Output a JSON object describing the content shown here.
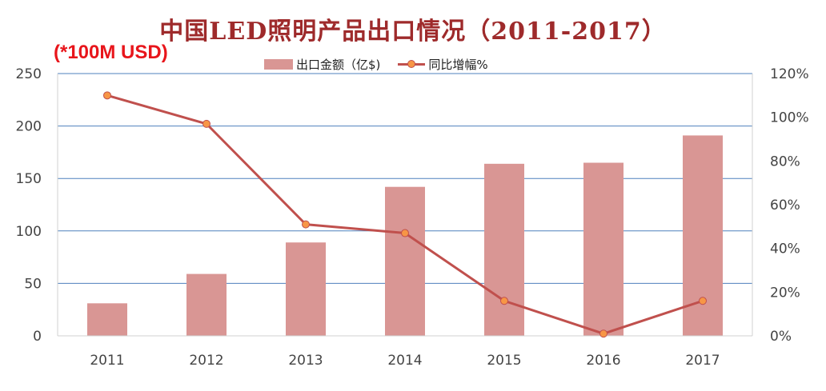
{
  "title": "中国LED照明产品出口情况（2011-2017）",
  "unit_label": "(*100M USD)",
  "legend": {
    "bar_label": "出口金额（亿$)",
    "line_label": "同比增幅%"
  },
  "colors": {
    "bar": "#d99694",
    "line": "#c0504d",
    "marker": "#f79646",
    "grid": "#4f81bd",
    "title": "#9e2a2b",
    "unit": "#e8151b"
  },
  "chart_data": {
    "type": "bar",
    "categories": [
      "2011",
      "2012",
      "2013",
      "2014",
      "2015",
      "2016",
      "2017"
    ],
    "series": [
      {
        "name": "出口金额（亿$)",
        "type": "bar",
        "axis": "left",
        "values": [
          31,
          59,
          89,
          142,
          164,
          165,
          191
        ]
      },
      {
        "name": "同比增幅%",
        "type": "line",
        "axis": "right",
        "values": [
          110,
          97,
          51,
          47,
          16,
          1,
          16
        ]
      }
    ],
    "y_left": {
      "min": 0,
      "max": 250,
      "ticks": [
        "0",
        "50",
        "100",
        "150",
        "200",
        "250"
      ]
    },
    "y_right": {
      "min": 0,
      "max": 120,
      "ticks": [
        "0%",
        "20%",
        "40%",
        "60%",
        "80%",
        "100%",
        "120%"
      ]
    },
    "grid": true,
    "legend_position": "top"
  }
}
